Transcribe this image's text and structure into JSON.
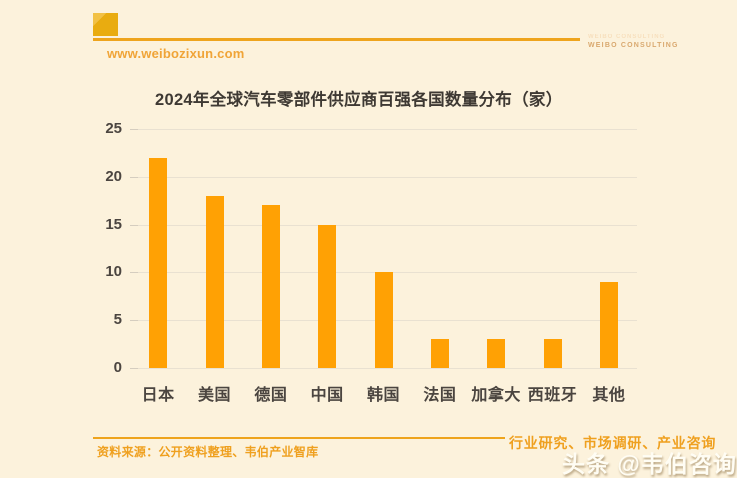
{
  "header": {
    "website_url": "www.weibozixun.com",
    "brand_tagline": "WEIBO CONSULTING"
  },
  "chart_data": {
    "type": "bar",
    "title": "2024年全球汽车零部件供应商百强各国数量分布（家）",
    "categories": [
      "日本",
      "美国",
      "德国",
      "中国",
      "韩国",
      "法国",
      "加拿大",
      "西班牙",
      "其他"
    ],
    "values": [
      22,
      18,
      17,
      15,
      10,
      3,
      3,
      3,
      9
    ],
    "ylim": [
      0,
      25
    ],
    "yticks": [
      0,
      5,
      10,
      15,
      20,
      25
    ],
    "grid": true,
    "legend": false,
    "xlabel": "",
    "ylabel": "",
    "bar_color": "#ffa104"
  },
  "footer": {
    "source_note": "资料来源：公开资料整理、韦伯产业智库",
    "services_note": "行业研究、市场调研、产业咨询",
    "watermark": "头条 @韦伯咨询"
  },
  "colors": {
    "background": "#fcf2dc",
    "accent_orange": "#efa11f",
    "bar_orange": "#ffa104",
    "title_text": "#3e3933",
    "axis_text": "#4b4540",
    "gridline": "#e9e1d1"
  }
}
